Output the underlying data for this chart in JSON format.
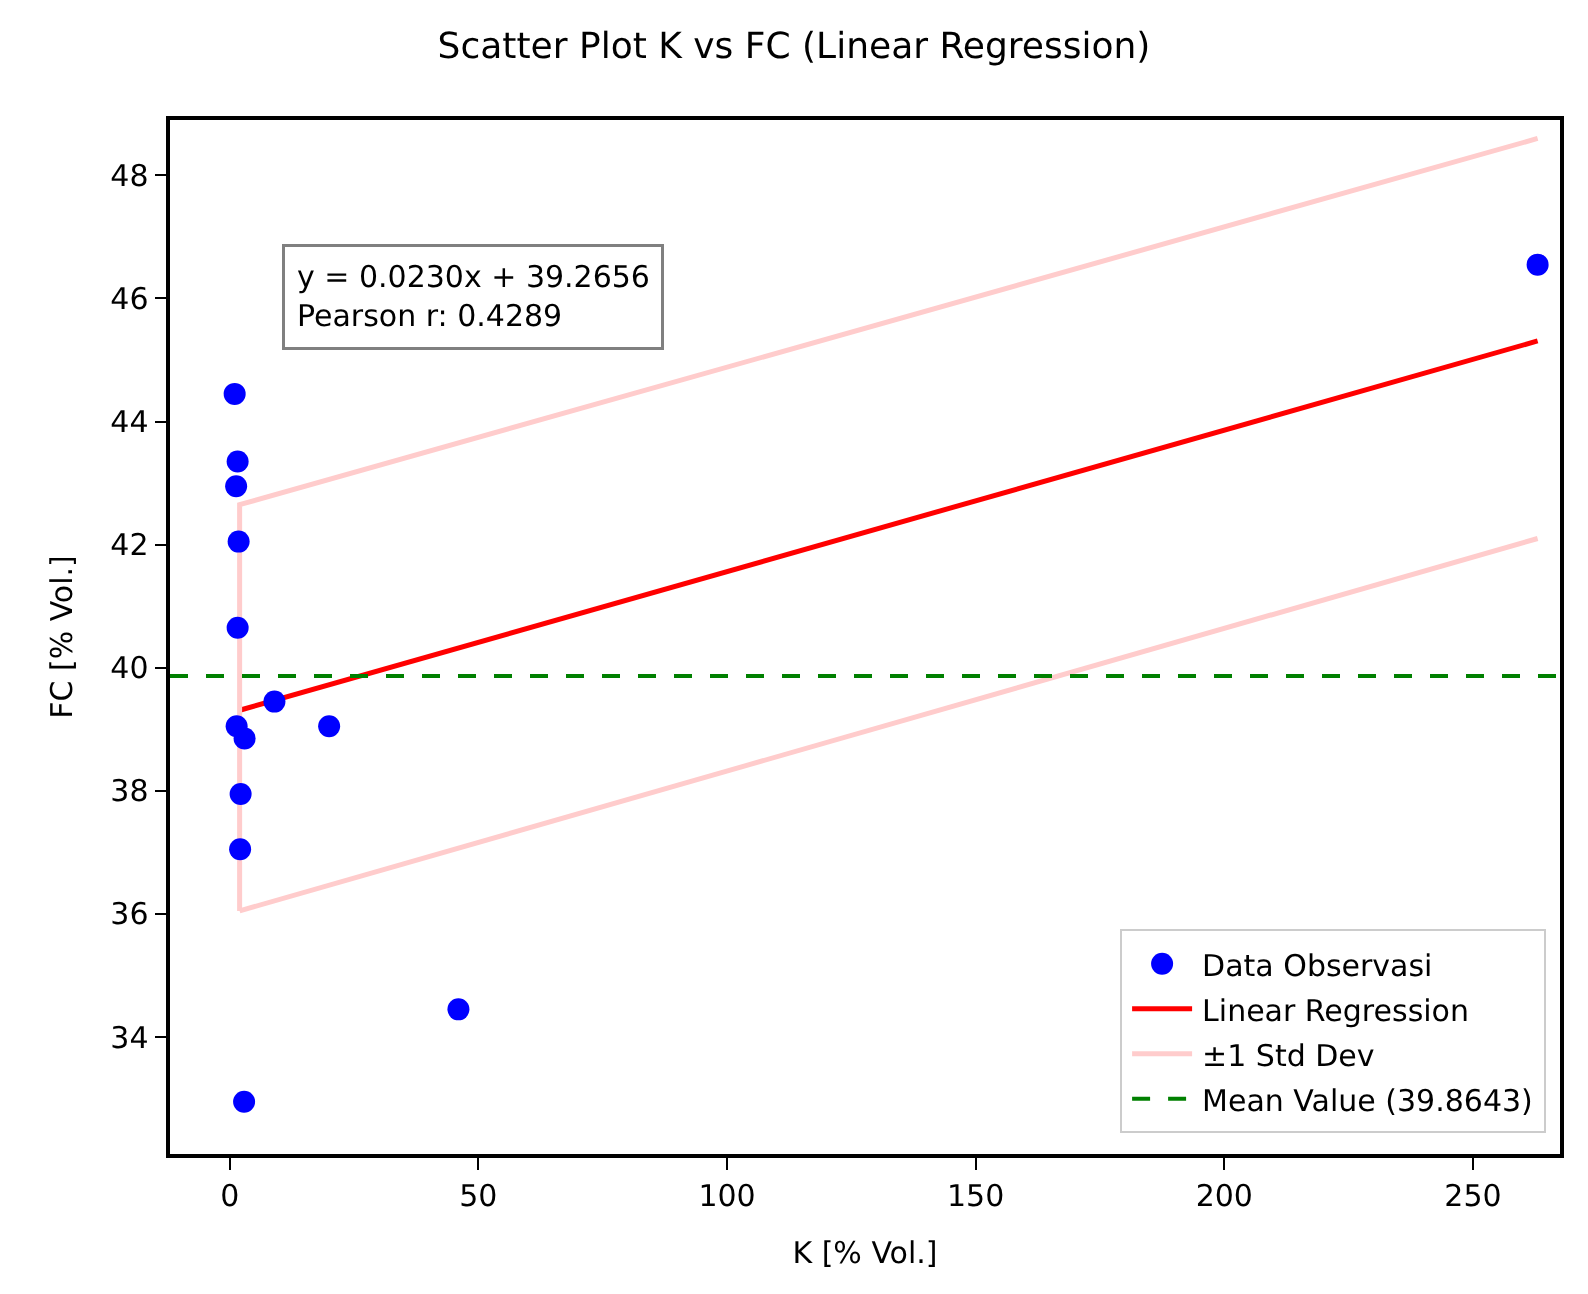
{
  "chart_data": {
    "type": "scatter",
    "title": "Scatter Plot K vs FC (Linear Regression)",
    "xlabel": "K [% Vol.]",
    "ylabel": "FC [% Vol.]",
    "xlim": [
      -12,
      267.5
    ],
    "xticks": [
      0,
      50,
      100,
      150,
      200,
      250
    ],
    "ylim": [
      32.1,
      48.9
    ],
    "yticks": [
      34,
      36,
      38,
      40,
      42,
      44,
      46,
      48
    ],
    "legend": "bottom right",
    "series": [
      {
        "name": "Data Observasi",
        "marker": "circle",
        "color": "#0000ff",
        "x": [
          1.0,
          1.6,
          1.3,
          1.8,
          1.6,
          1.4,
          3.0,
          9.0,
          20.0,
          2.2,
          2.1,
          2.9,
          46,
          263
        ],
        "values": [
          44.45,
          43.35,
          42.95,
          42.05,
          40.65,
          39.05,
          38.85,
          39.45,
          39.05,
          37.95,
          37.05,
          32.95,
          34.45,
          46.55
        ]
      },
      {
        "name": "Linear Regression",
        "type": "line",
        "color": "#ff0000",
        "line_style": "solid",
        "x": [
          2,
          263
        ],
        "values": [
          39.31,
          45.31
        ]
      },
      {
        "name": "±1 Std Dev",
        "type": "line",
        "color": "#ffcccc",
        "x": [
          2,
          2,
          263
        ],
        "values": [
          36.05,
          42.65,
          48.6
        ]
      },
      {
        "type": "line",
        "color": "#ffcccc",
        "x": [
          2,
          263
        ],
        "values": [
          36.05,
          42.1
        ]
      }
    ],
    "ref_lines": [
      {
        "axis": "y",
        "value": 39.8643,
        "label": "Mean Value (39.8643)",
        "color": "#008000",
        "line_style": "dashed"
      }
    ],
    "annotations": [
      "y = 0.0230x + 39.2656\nPearson r: 0.4289"
    ]
  }
}
